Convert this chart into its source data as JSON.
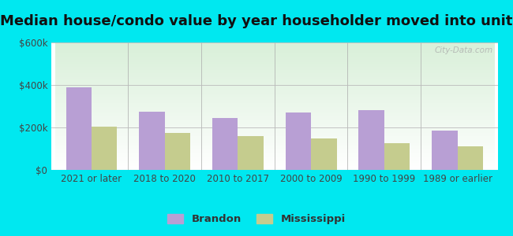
{
  "title": "Median house/condo value by year householder moved into unit",
  "categories": [
    "2021 or later",
    "2018 to 2020",
    "2010 to 2017",
    "2000 to 2009",
    "1990 to 1999",
    "1989 or earlier"
  ],
  "brandon_values": [
    390000,
    275000,
    245000,
    270000,
    280000,
    185000
  ],
  "mississippi_values": [
    205000,
    175000,
    160000,
    150000,
    125000,
    110000
  ],
  "brandon_color": "#b89fd4",
  "mississippi_color": "#c5cc8e",
  "ylim": [
    0,
    600000
  ],
  "yticks": [
    0,
    200000,
    400000,
    600000
  ],
  "ytick_labels": [
    "$0",
    "$200k",
    "$400k",
    "$600k"
  ],
  "legend_labels": [
    "Brandon",
    "Mississippi"
  ],
  "bg_outer": "#00e8f0",
  "watermark": "City-Data.com",
  "bar_width": 0.35,
  "title_fontsize": 13,
  "tick_fontsize": 8.5,
  "legend_fontsize": 9.5
}
